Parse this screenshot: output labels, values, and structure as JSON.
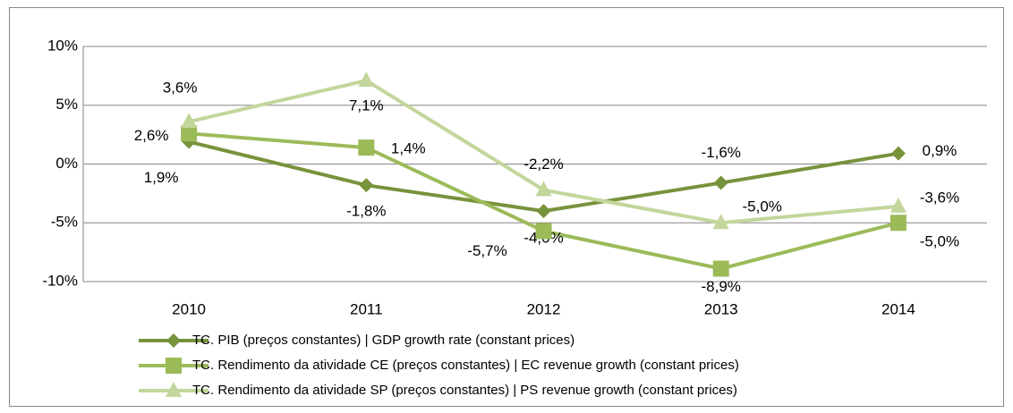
{
  "chart_data": {
    "type": "line",
    "categories": [
      "2010",
      "2011",
      "2012",
      "2013",
      "2014"
    ],
    "series": [
      {
        "name": "TC. PIB (preços constantes) | GDP growth rate (constant prices)",
        "color": "#77933c",
        "marker": "diamond",
        "values": [
          1.9,
          -1.8,
          -4.0,
          -1.6,
          0.9
        ],
        "value_labels": [
          "1,9%",
          "-1,8%",
          "-4,0%",
          "-1,6%",
          "0,9%"
        ]
      },
      {
        "name": "TC. Rendimento da atividade CE (preços constantes) | EC revenue growth (constant prices)",
        "color": "#9bbb59",
        "marker": "square",
        "values": [
          2.6,
          1.4,
          -5.7,
          -8.9,
          -5.0
        ],
        "value_labels": [
          "2,6%",
          "1,4%",
          "-5,7%",
          "-8,9%",
          "-5,0%"
        ]
      },
      {
        "name": "TC. Rendimento da atividade SP (preços constantes) | PS revenue growth (constant prices)",
        "color": "#c3d69b",
        "marker": "triangle",
        "values": [
          3.6,
          7.1,
          -2.2,
          -5.0,
          -3.6
        ],
        "value_labels": [
          "3,6%",
          "7,1%",
          "-2,2%",
          "-5,0%",
          "-3,6%"
        ]
      }
    ],
    "ylim": [
      -10,
      10
    ],
    "yticks": [
      {
        "value": -10,
        "label": "-10%"
      },
      {
        "value": -5,
        "label": "-5%"
      },
      {
        "value": 0,
        "label": "0%"
      },
      {
        "value": 5,
        "label": "5%"
      },
      {
        "value": 10,
        "label": "10%"
      }
    ],
    "grid": true,
    "legend": "bottom"
  }
}
